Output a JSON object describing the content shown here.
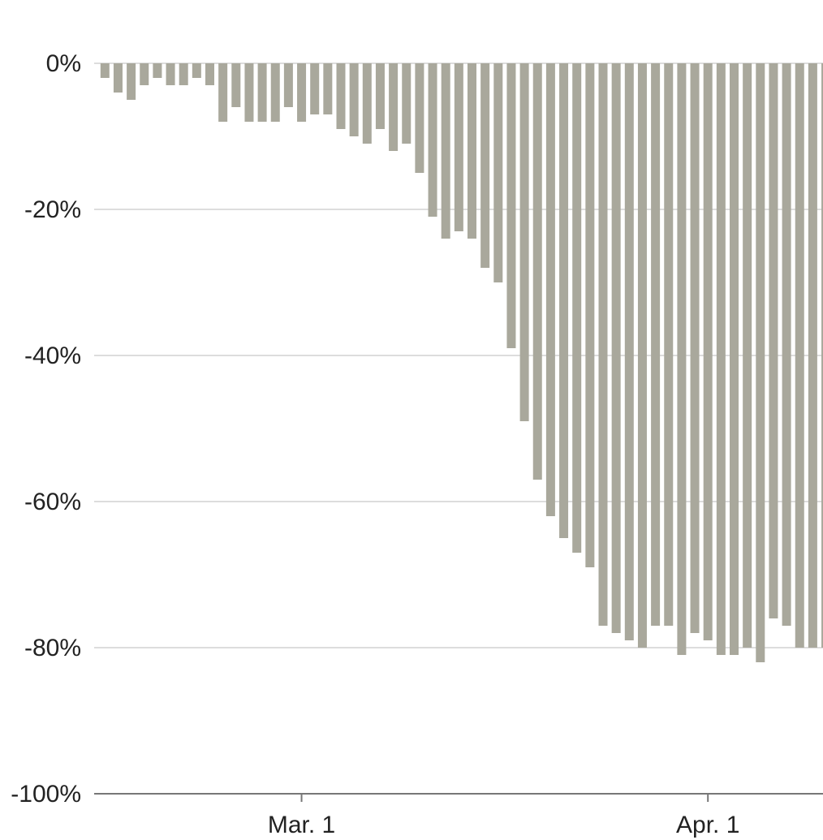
{
  "chart_data": {
    "type": "bar",
    "title": "",
    "xlabel": "",
    "ylabel": "",
    "ylim": [
      -100,
      0
    ],
    "grid": true,
    "bar_color": "#a9a89c",
    "grid_color": "#dddddd",
    "axis_color": "#777777",
    "x_start": "2020-02-15",
    "x_end": "2020-04-12",
    "x_ticks": [
      {
        "date": "2020-03-01",
        "label": "Mar. 1"
      },
      {
        "date": "2020-04-01",
        "label": "Apr. 1"
      }
    ],
    "y_ticks": [
      {
        "value": 0,
        "label": "0%"
      },
      {
        "value": -20,
        "label": "-20%"
      },
      {
        "value": -40,
        "label": "-40%"
      },
      {
        "value": -60,
        "label": "-60%"
      },
      {
        "value": -80,
        "label": "-80%"
      },
      {
        "value": -100,
        "label": "-100%"
      }
    ],
    "categories": [
      "2020-02-15",
      "2020-02-16",
      "2020-02-17",
      "2020-02-18",
      "2020-02-19",
      "2020-02-20",
      "2020-02-21",
      "2020-02-22",
      "2020-02-23",
      "2020-02-24",
      "2020-02-25",
      "2020-02-26",
      "2020-02-27",
      "2020-02-28",
      "2020-02-29",
      "2020-03-01",
      "2020-03-02",
      "2020-03-03",
      "2020-03-04",
      "2020-03-05",
      "2020-03-06",
      "2020-03-07",
      "2020-03-08",
      "2020-03-09",
      "2020-03-10",
      "2020-03-11",
      "2020-03-12",
      "2020-03-13",
      "2020-03-14",
      "2020-03-15",
      "2020-03-16",
      "2020-03-17",
      "2020-03-18",
      "2020-03-19",
      "2020-03-20",
      "2020-03-21",
      "2020-03-22",
      "2020-03-23",
      "2020-03-24",
      "2020-03-25",
      "2020-03-26",
      "2020-03-27",
      "2020-03-28",
      "2020-03-29",
      "2020-03-30",
      "2020-03-31",
      "2020-04-01",
      "2020-04-02",
      "2020-04-03",
      "2020-04-04",
      "2020-04-05",
      "2020-04-06",
      "2020-04-07",
      "2020-04-08",
      "2020-04-09",
      "2020-04-10"
    ],
    "values": [
      -2,
      -4,
      -5,
      -3,
      -2,
      -3,
      -3,
      -2,
      -3,
      -8,
      -6,
      -8,
      -8,
      -8,
      -6,
      -8,
      -7,
      -7,
      -9,
      -10,
      -11,
      -9,
      -12,
      -11,
      -15,
      -21,
      -24,
      -23,
      -24,
      -28,
      -30,
      -39,
      -49,
      -57,
      -62,
      -65,
      -67,
      -69,
      -77,
      -78,
      -79,
      -80,
      -77,
      -77,
      -81,
      -78,
      -79,
      -81,
      -81,
      -80,
      -82,
      -76,
      -77,
      -80,
      -80,
      -80
    ]
  }
}
